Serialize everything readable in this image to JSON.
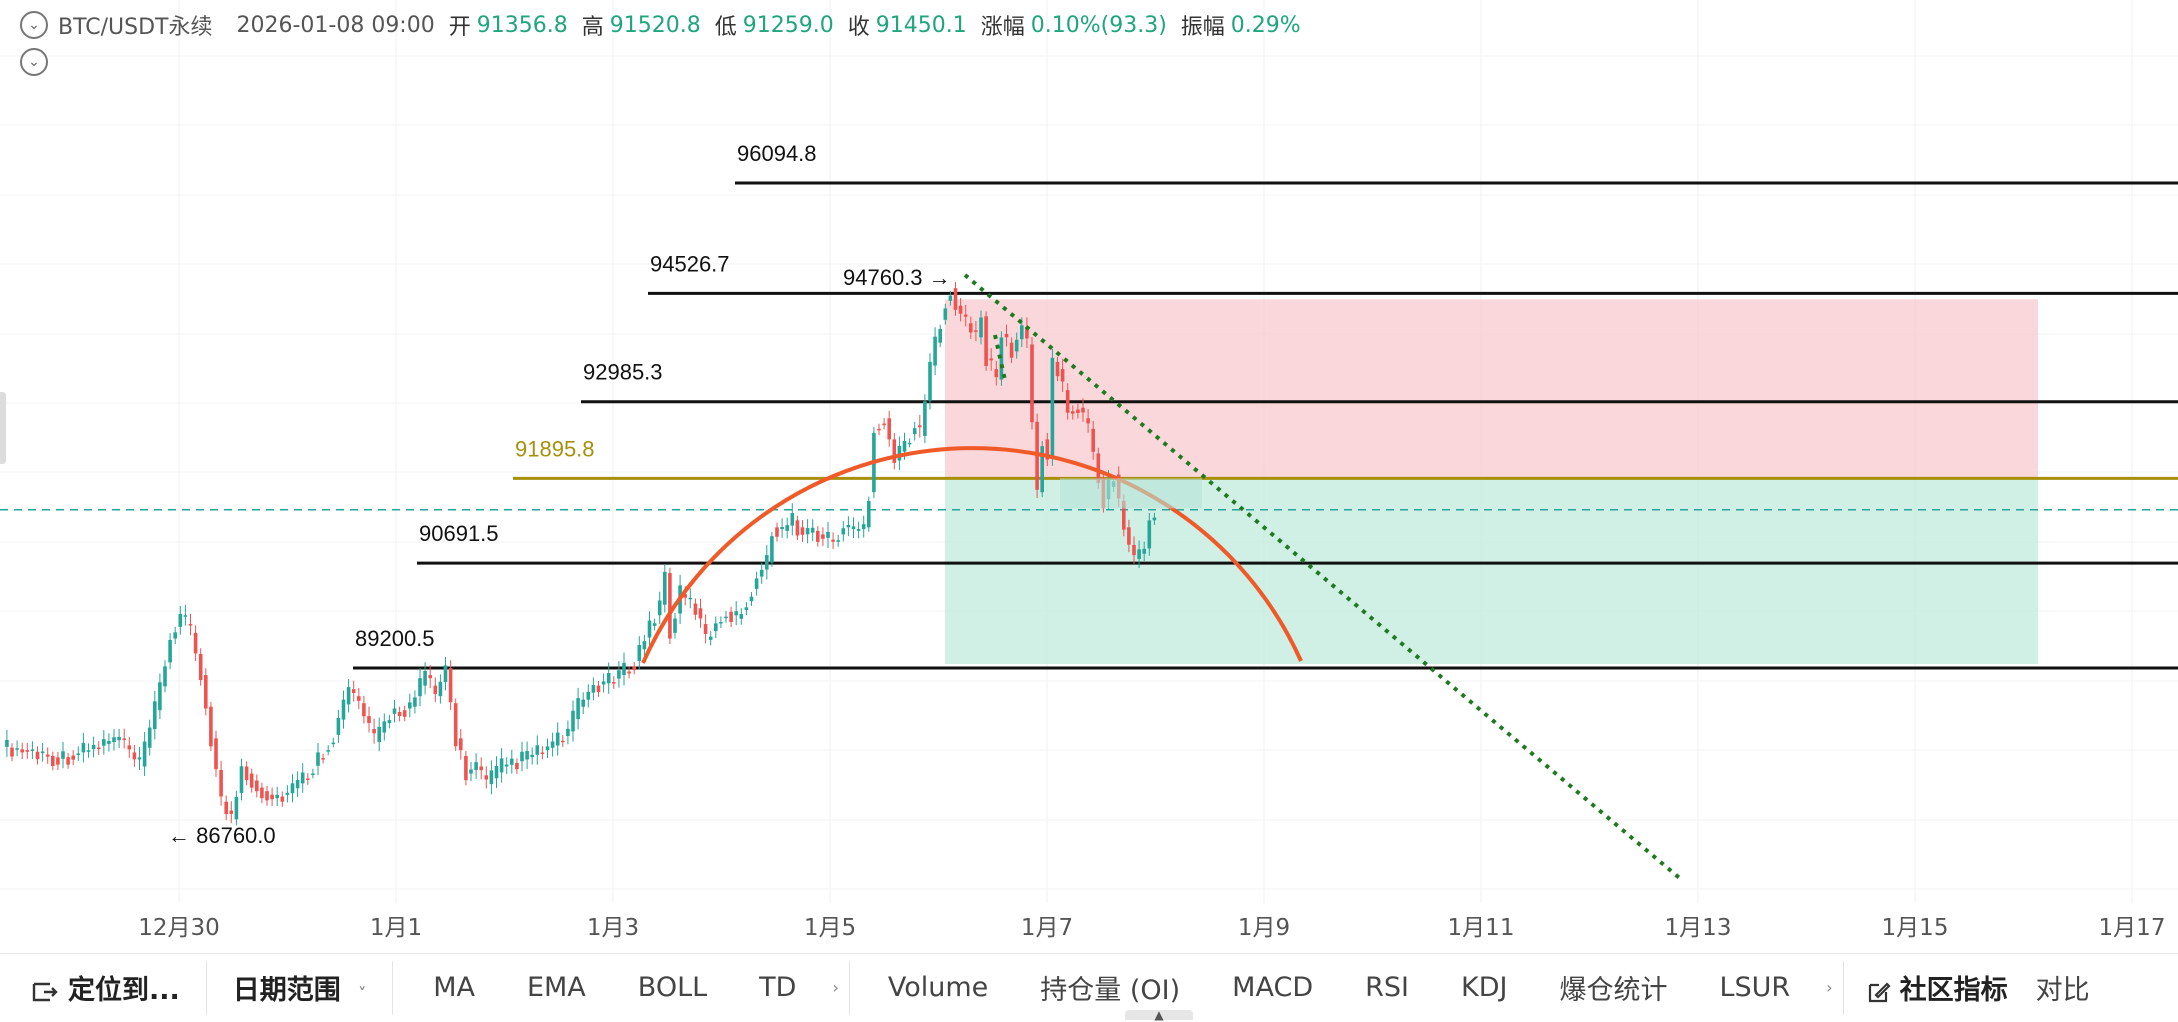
{
  "header": {
    "symbol": "BTC/USDT永续",
    "datetime": "2026-01-08 09:00",
    "open_label": "开",
    "open": "91356.8",
    "high_label": "高",
    "high": "91520.8",
    "low_label": "低",
    "low": "91259.0",
    "close_label": "收",
    "close": "91450.1",
    "change_label": "涨幅",
    "change": "0.10%(93.3)",
    "amp_label": "振幅",
    "amp": "0.29%"
  },
  "toolbar": {
    "locate": "定位到...",
    "date_range": "日期范围",
    "indicators": [
      "MA",
      "EMA",
      "BOLL",
      "TD"
    ],
    "sub_indicators": [
      "Volume",
      "持仓量 (OI)",
      "MACD",
      "RSI",
      "KDJ",
      "爆仓统计",
      "LSUR"
    ],
    "community": "社区指标",
    "compare": "对比"
  },
  "colors": {
    "up": "#26a69a",
    "down": "#ef5350",
    "arc": "#f05a28",
    "trend": "#1f7a1f",
    "gold_line": "#a8900c",
    "red_zone": "#f8cdd1",
    "green_zone": "#c4ebde"
  },
  "chart_data": {
    "type": "candlestick",
    "timeframe": "1h",
    "x_ticks": [
      "12月30",
      "1月1",
      "1月3",
      "1月5",
      "1月7",
      "1月9",
      "1月11",
      "1月13",
      "1月15",
      "1月17"
    ],
    "current_price": 91450.1,
    "annotations": {
      "horizontal_levels": [
        96094.8,
        94526.7,
        92985.3,
        91895.8,
        90691.5,
        89200.5
      ],
      "high_marker": "94760.3",
      "low_marker": "86760.0",
      "position_box": {
        "entry": 91895.8,
        "stop": 94526.7,
        "target": 89200.5
      },
      "arc": "semicircle over the Jan 3 – Jan 9 range",
      "trendline": "dotted descending line from the 94760.3 high"
    },
    "price_path": [
      [
        0,
        88080
      ],
      [
        6,
        88010
      ],
      [
        11,
        87910
      ],
      [
        18,
        88070
      ],
      [
        23,
        88200
      ],
      [
        27,
        87800
      ],
      [
        30,
        88600
      ],
      [
        33,
        89620
      ],
      [
        35,
        89950
      ],
      [
        37,
        89700
      ],
      [
        39,
        89100
      ],
      [
        41,
        88200
      ],
      [
        43,
        87300
      ],
      [
        45,
        87050
      ],
      [
        47,
        87800
      ],
      [
        50,
        87500
      ],
      [
        53,
        87350
      ],
      [
        56,
        87420
      ],
      [
        60,
        87700
      ],
      [
        65,
        88250
      ],
      [
        68,
        88900
      ],
      [
        70,
        88700
      ],
      [
        73,
        88150
      ],
      [
        76,
        88550
      ],
      [
        80,
        88650
      ],
      [
        83,
        89100
      ],
      [
        85,
        88800
      ],
      [
        87,
        89200
      ],
      [
        89,
        88200
      ],
      [
        91,
        87700
      ],
      [
        93,
        87800
      ],
      [
        95,
        87550
      ],
      [
        98,
        87800
      ],
      [
        102,
        87900
      ],
      [
        105,
        88000
      ],
      [
        108,
        88100
      ],
      [
        111,
        88300
      ],
      [
        113,
        88650
      ],
      [
        116,
        88950
      ],
      [
        119,
        89000
      ],
      [
        122,
        89150
      ],
      [
        124,
        89300
      ],
      [
        127,
        89800
      ],
      [
        129,
        90100
      ],
      [
        130,
        90550
      ],
      [
        131,
        89700
      ],
      [
        133,
        90250
      ],
      [
        136,
        90050
      ],
      [
        138,
        89600
      ],
      [
        140,
        89850
      ],
      [
        142,
        90000
      ],
      [
        144,
        89900
      ],
      [
        146,
        90150
      ],
      [
        148,
        90500
      ],
      [
        150,
        90700
      ],
      [
        151,
        91200
      ],
      [
        153,
        91150
      ],
      [
        155,
        91300
      ],
      [
        157,
        91100
      ],
      [
        159,
        91150
      ],
      [
        161,
        91050
      ],
      [
        163,
        91000
      ],
      [
        165,
        91200
      ],
      [
        167,
        91150
      ],
      [
        169,
        91200
      ],
      [
        170,
        91700
      ],
      [
        171,
        92600
      ],
      [
        173,
        92750
      ],
      [
        175,
        92150
      ],
      [
        177,
        92400
      ],
      [
        179,
        92650
      ],
      [
        180,
        92500
      ],
      [
        182,
        93500
      ],
      [
        184,
        94150
      ],
      [
        185,
        94420
      ],
      [
        186,
        94600
      ],
      [
        187,
        94350
      ],
      [
        189,
        94100
      ],
      [
        191,
        93900
      ],
      [
        192,
        94200
      ],
      [
        193,
        93600
      ],
      [
        195,
        93300
      ],
      [
        196,
        93950
      ],
      [
        198,
        93700
      ],
      [
        200,
        94050
      ],
      [
        201,
        93800
      ],
      [
        202,
        92700
      ],
      [
        203,
        91700
      ],
      [
        204,
        92450
      ],
      [
        205,
        92200
      ],
      [
        206,
        93550
      ],
      [
        207,
        93450
      ],
      [
        209,
        92850
      ],
      [
        211,
        92900
      ],
      [
        213,
        92600
      ],
      [
        215,
        91900
      ],
      [
        216,
        91600
      ],
      [
        218,
        91950
      ],
      [
        220,
        91200
      ],
      [
        221,
        90950
      ],
      [
        222,
        90750
      ],
      [
        224,
        90900
      ],
      [
        225,
        91300
      ],
      [
        226,
        91450
      ]
    ]
  }
}
